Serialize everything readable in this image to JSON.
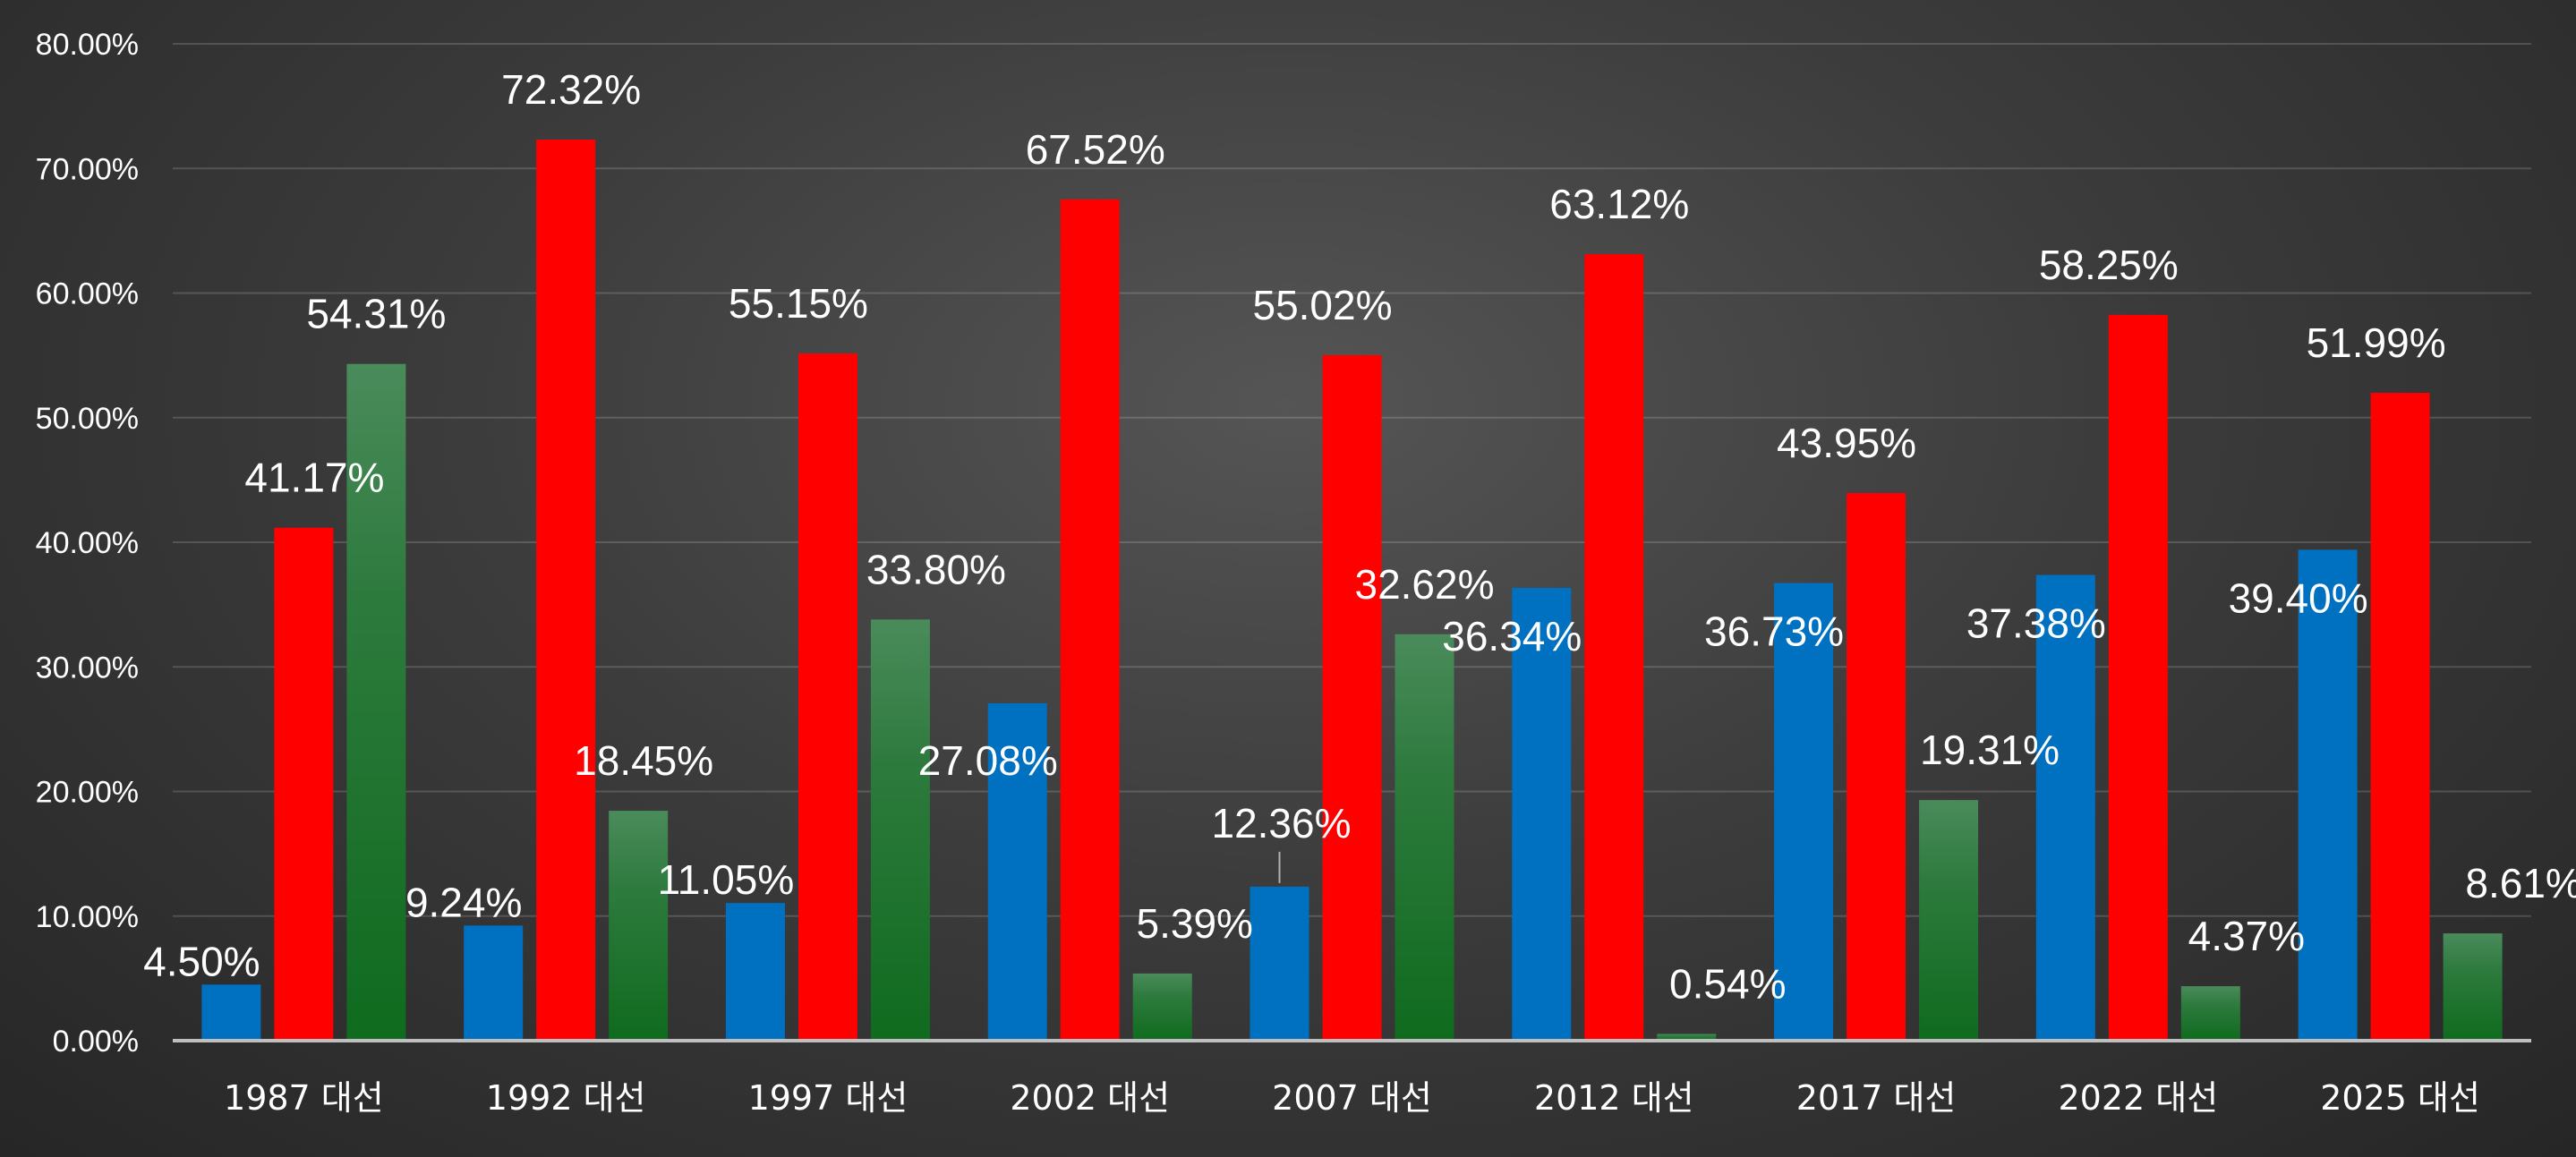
{
  "chart_data": {
    "type": "bar",
    "categories": [
      "1987 대선",
      "1992 대선",
      "1997 대선",
      "2002 대선",
      "2007 대선",
      "2012 대선",
      "2017 대선",
      "2022 대선",
      "2025 대선"
    ],
    "series": [
      {
        "color": "#0070C0",
        "values": [
          4.5,
          9.24,
          11.05,
          27.08,
          12.36,
          36.34,
          36.73,
          37.38,
          39.4
        ],
        "labels": [
          "4.50%",
          "9.24%",
          "11.05%",
          "27.08%",
          "12.36%",
          "36.34%",
          "36.73%",
          "37.38%",
          "39.40%"
        ]
      },
      {
        "color": "#FF0000",
        "values": [
          41.17,
          72.32,
          55.15,
          67.52,
          55.02,
          63.12,
          43.95,
          58.25,
          51.99
        ],
        "labels": [
          "41.17%",
          "72.32%",
          "55.15%",
          "67.52%",
          "55.02%",
          "63.12%",
          "43.95%",
          "58.25%",
          "51.99%"
        ]
      },
      {
        "color": "#1E7A30",
        "values": [
          54.31,
          18.45,
          33.8,
          5.39,
          32.62,
          0.54,
          19.31,
          4.37,
          8.61
        ],
        "labels": [
          "54.31%",
          "18.45%",
          "33.80%",
          "5.39%",
          "32.62%",
          "0.54%",
          "19.31%",
          "4.37%",
          "8.61%"
        ]
      }
    ],
    "ylim": [
      0,
      80
    ],
    "yticks": [
      "0.00%",
      "10.00%",
      "20.00%",
      "30.00%",
      "40.00%",
      "50.00%",
      "60.00%",
      "70.00%",
      "80.00%"
    ],
    "grid": true,
    "xlabel": "",
    "ylabel": ""
  }
}
